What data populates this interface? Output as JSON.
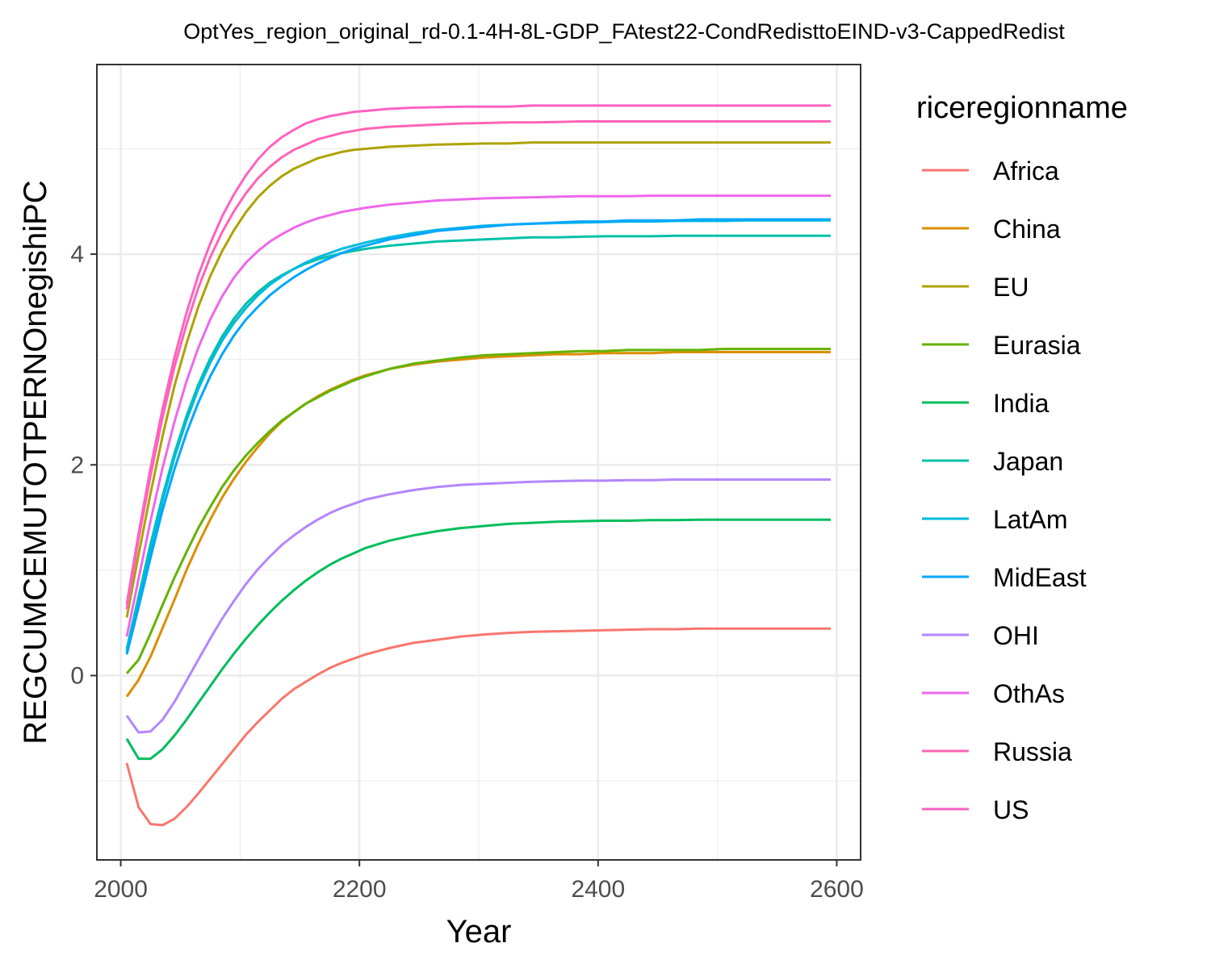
{
  "chart_data": {
    "type": "line",
    "title": "OptYes_region_original_rd-0.1-4H-8L-GDP_FAtest22-CondRedisttoEIND-v3-CappedRedist",
    "xlabel": "Year",
    "ylabel": "REGCUMCEMUTOTPERNOnegishiPC",
    "xlim": [
      1980,
      2620
    ],
    "ylim": [
      -1.75,
      5.8
    ],
    "x_ticks": [
      2000,
      2200,
      2400,
      2600
    ],
    "y_ticks": [
      0,
      2,
      4
    ],
    "grid": true,
    "legend": {
      "title": "riceregionname",
      "placement": "right"
    },
    "x": [
      2005,
      2015,
      2025,
      2035,
      2045,
      2055,
      2065,
      2075,
      2085,
      2095,
      2105,
      2115,
      2125,
      2135,
      2145,
      2155,
      2165,
      2175,
      2185,
      2195,
      2205,
      2225,
      2245,
      2265,
      2285,
      2305,
      2325,
      2345,
      2365,
      2385,
      2405,
      2425,
      2445,
      2465,
      2485,
      2505,
      2525,
      2545,
      2565,
      2585,
      2595
    ],
    "series": [
      {
        "name": "Africa",
        "color": "#F8766D",
        "values": [
          -0.83,
          -1.25,
          -1.41,
          -1.42,
          -1.36,
          -1.25,
          -1.12,
          -0.98,
          -0.84,
          -0.7,
          -0.56,
          -0.44,
          -0.33,
          -0.22,
          -0.13,
          -0.06,
          0.01,
          0.07,
          0.12,
          0.16,
          0.2,
          0.26,
          0.31,
          0.34,
          0.37,
          0.39,
          0.405,
          0.415,
          0.42,
          0.425,
          0.43,
          0.435,
          0.44,
          0.44,
          0.445,
          0.445,
          0.445,
          0.445,
          0.445,
          0.445,
          0.445
        ]
      },
      {
        "name": "China",
        "color": "#DB8E00",
        "values": [
          -0.2,
          -0.04,
          0.18,
          0.45,
          0.72,
          1.0,
          1.25,
          1.48,
          1.69,
          1.87,
          2.03,
          2.17,
          2.3,
          2.41,
          2.5,
          2.58,
          2.65,
          2.71,
          2.76,
          2.81,
          2.85,
          2.91,
          2.95,
          2.98,
          3.0,
          3.02,
          3.03,
          3.04,
          3.05,
          3.05,
          3.06,
          3.06,
          3.06,
          3.07,
          3.07,
          3.07,
          3.07,
          3.07,
          3.07,
          3.07,
          3.07
        ]
      },
      {
        "name": "EU",
        "color": "#AEA200",
        "values": [
          0.55,
          1.15,
          1.73,
          2.27,
          2.75,
          3.15,
          3.5,
          3.79,
          4.03,
          4.23,
          4.4,
          4.54,
          4.65,
          4.74,
          4.81,
          4.86,
          4.91,
          4.94,
          4.97,
          4.99,
          5.0,
          5.02,
          5.03,
          5.04,
          5.045,
          5.05,
          5.05,
          5.06,
          5.06,
          5.06,
          5.06,
          5.06,
          5.06,
          5.06,
          5.06,
          5.06,
          5.06,
          5.06,
          5.06,
          5.06,
          5.06
        ]
      },
      {
        "name": "Eurasia",
        "color": "#64B200",
        "values": [
          0.02,
          0.15,
          0.4,
          0.67,
          0.93,
          1.17,
          1.4,
          1.6,
          1.79,
          1.95,
          2.09,
          2.21,
          2.32,
          2.42,
          2.5,
          2.58,
          2.64,
          2.7,
          2.75,
          2.8,
          2.84,
          2.91,
          2.96,
          2.99,
          3.02,
          3.04,
          3.05,
          3.06,
          3.07,
          3.08,
          3.08,
          3.09,
          3.09,
          3.09,
          3.09,
          3.1,
          3.1,
          3.1,
          3.1,
          3.1,
          3.1
        ]
      },
      {
        "name": "India",
        "color": "#00BD5C",
        "values": [
          -0.6,
          -0.79,
          -0.79,
          -0.7,
          -0.57,
          -0.42,
          -0.26,
          -0.1,
          0.06,
          0.21,
          0.35,
          0.48,
          0.6,
          0.71,
          0.81,
          0.9,
          0.98,
          1.05,
          1.11,
          1.16,
          1.21,
          1.28,
          1.33,
          1.37,
          1.4,
          1.42,
          1.44,
          1.45,
          1.46,
          1.465,
          1.47,
          1.47,
          1.475,
          1.475,
          1.48,
          1.48,
          1.48,
          1.48,
          1.48,
          1.48,
          1.48
        ]
      },
      {
        "name": "Japan",
        "color": "#00C1A7",
        "values": [
          0.25,
          0.75,
          1.25,
          1.7,
          2.11,
          2.46,
          2.76,
          3.01,
          3.22,
          3.39,
          3.53,
          3.64,
          3.73,
          3.8,
          3.86,
          3.91,
          3.95,
          3.98,
          4.01,
          4.03,
          4.05,
          4.08,
          4.1,
          4.12,
          4.13,
          4.14,
          4.15,
          4.16,
          4.16,
          4.165,
          4.17,
          4.17,
          4.17,
          4.175,
          4.175,
          4.175,
          4.175,
          4.175,
          4.175,
          4.175,
          4.175
        ]
      },
      {
        "name": "LatAm",
        "color": "#00BADE",
        "values": [
          0.22,
          0.7,
          1.2,
          1.66,
          2.07,
          2.42,
          2.72,
          2.97,
          3.18,
          3.35,
          3.49,
          3.61,
          3.71,
          3.79,
          3.86,
          3.92,
          3.97,
          4.01,
          4.05,
          4.08,
          4.11,
          4.16,
          4.2,
          4.23,
          4.25,
          4.27,
          4.28,
          4.29,
          4.295,
          4.3,
          4.305,
          4.31,
          4.31,
          4.315,
          4.315,
          4.315,
          4.32,
          4.32,
          4.32,
          4.32,
          4.32
        ]
      },
      {
        "name": "MidEast",
        "color": "#00A6FF",
        "values": [
          0.2,
          0.65,
          1.12,
          1.57,
          1.96,
          2.3,
          2.59,
          2.84,
          3.05,
          3.23,
          3.38,
          3.5,
          3.61,
          3.7,
          3.78,
          3.85,
          3.91,
          3.96,
          4.01,
          4.05,
          4.08,
          4.14,
          4.18,
          4.22,
          4.24,
          4.26,
          4.28,
          4.29,
          4.3,
          4.31,
          4.31,
          4.32,
          4.32,
          4.32,
          4.33,
          4.33,
          4.33,
          4.33,
          4.33,
          4.33,
          4.33
        ]
      },
      {
        "name": "OHI",
        "color": "#B385FF",
        "values": [
          -0.38,
          -0.54,
          -0.53,
          -0.42,
          -0.25,
          -0.05,
          0.15,
          0.35,
          0.54,
          0.71,
          0.87,
          1.01,
          1.13,
          1.24,
          1.33,
          1.41,
          1.48,
          1.54,
          1.59,
          1.63,
          1.67,
          1.72,
          1.76,
          1.79,
          1.81,
          1.82,
          1.83,
          1.84,
          1.845,
          1.85,
          1.85,
          1.855,
          1.855,
          1.86,
          1.86,
          1.86,
          1.86,
          1.86,
          1.86,
          1.86,
          1.86
        ]
      },
      {
        "name": "OthAs",
        "color": "#EF67EB",
        "values": [
          0.37,
          0.92,
          1.47,
          1.97,
          2.41,
          2.79,
          3.11,
          3.38,
          3.6,
          3.78,
          3.92,
          4.03,
          4.12,
          4.19,
          4.25,
          4.3,
          4.34,
          4.37,
          4.4,
          4.42,
          4.44,
          4.47,
          4.49,
          4.51,
          4.52,
          4.53,
          4.535,
          4.54,
          4.545,
          4.55,
          4.55,
          4.55,
          4.555,
          4.555,
          4.555,
          4.555,
          4.555,
          4.555,
          4.555,
          4.555,
          4.555
        ]
      },
      {
        "name": "Russia",
        "color": "#FF63B6",
        "values": [
          0.63,
          1.3,
          1.9,
          2.45,
          2.93,
          3.33,
          3.68,
          3.97,
          4.21,
          4.41,
          4.58,
          4.72,
          4.83,
          4.92,
          4.99,
          5.04,
          5.09,
          5.12,
          5.15,
          5.17,
          5.19,
          5.21,
          5.22,
          5.23,
          5.24,
          5.245,
          5.25,
          5.25,
          5.255,
          5.26,
          5.26,
          5.26,
          5.26,
          5.26,
          5.26,
          5.26,
          5.26,
          5.26,
          5.26,
          5.26,
          5.26
        ]
      },
      {
        "name": "US",
        "color": "#FF61C3",
        "values": [
          0.68,
          1.35,
          1.97,
          2.53,
          3.02,
          3.44,
          3.8,
          4.1,
          4.36,
          4.57,
          4.75,
          4.9,
          5.02,
          5.11,
          5.18,
          5.24,
          5.28,
          5.31,
          5.33,
          5.35,
          5.36,
          5.38,
          5.39,
          5.395,
          5.4,
          5.4,
          5.4,
          5.41,
          5.41,
          5.41,
          5.41,
          5.41,
          5.41,
          5.41,
          5.41,
          5.41,
          5.41,
          5.41,
          5.41,
          5.41,
          5.41
        ]
      }
    ]
  }
}
